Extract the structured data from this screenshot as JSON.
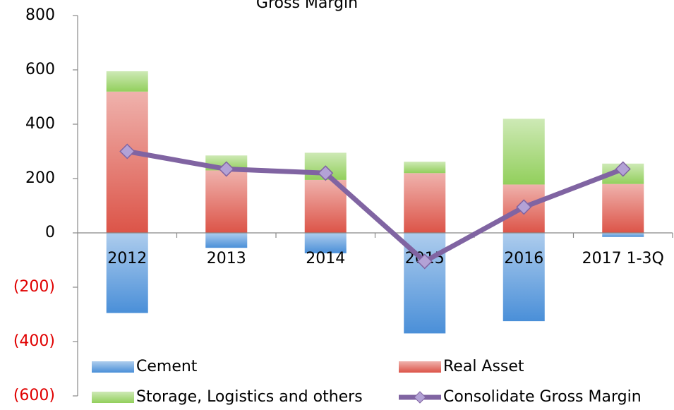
{
  "chart_data": {
    "type": "stacked-bar-line",
    "title": "Gross Margin",
    "categories": [
      "2012",
      "2013",
      "2014",
      "2015",
      "2016",
      "2017 1-3Q"
    ],
    "series": [
      {
        "name": "Cement",
        "color": "#4a8fd8",
        "values": [
          -295,
          -55,
          -75,
          -370,
          -325,
          -15
        ]
      },
      {
        "name": "Real Asset",
        "color": "#dc5448",
        "values": [
          520,
          230,
          195,
          220,
          178,
          180
        ]
      },
      {
        "name": "Storage, Logistics and others",
        "color": "#92cf5c",
        "values": [
          75,
          55,
          100,
          42,
          242,
          75
        ]
      },
      {
        "name": "Consolidate Gross Margin",
        "color": "#8064a2",
        "type": "line",
        "values": [
          300,
          235,
          220,
          -105,
          95,
          235
        ]
      }
    ],
    "ylim": [
      -600,
      800
    ],
    "yticks": [
      {
        "value": -600,
        "label": "(600)"
      },
      {
        "value": -400,
        "label": "(400)"
      },
      {
        "value": -200,
        "label": "(200)"
      },
      0,
      200,
      400,
      600,
      800
    ],
    "negative_tick_color": "#e00000"
  }
}
